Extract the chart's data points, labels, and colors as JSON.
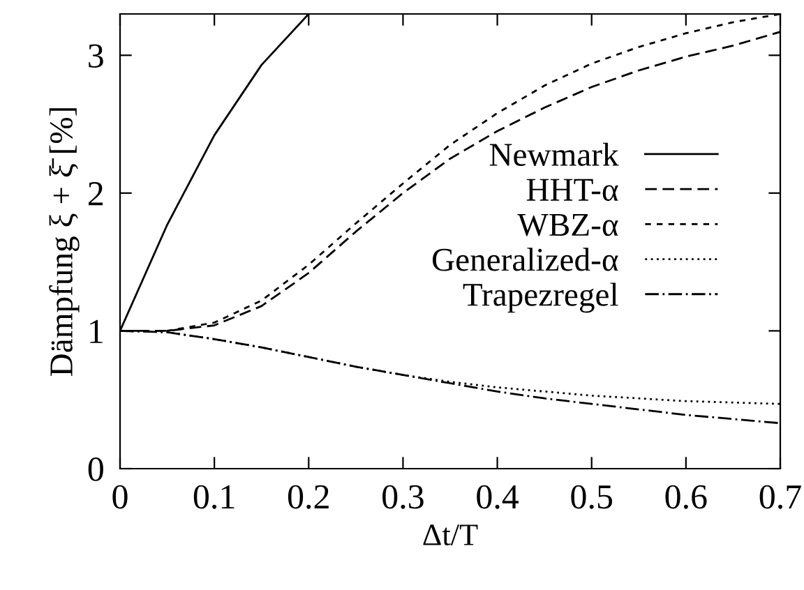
{
  "chart_data": {
    "type": "line",
    "xlabel": "Δt/T",
    "ylabel": "Dämpfung ξ + ξ̄ [%]",
    "x": [
      0,
      0.05,
      0.1,
      0.15,
      0.2,
      0.25,
      0.3,
      0.35,
      0.4,
      0.45,
      0.5,
      0.55,
      0.6,
      0.65,
      0.7
    ],
    "series": [
      {
        "name": "Newmark",
        "color": "#000000",
        "line_style": "solid",
        "x": [
          0,
          0.05,
          0.1,
          0.15,
          0.2
        ],
        "values": [
          1,
          1.77,
          2.42,
          2.93,
          3.3
        ]
      },
      {
        "name": "HHT-α",
        "color": "#000000",
        "line_style": "dashed",
        "values": [
          1,
          1,
          1.04,
          1.18,
          1.42,
          1.72,
          2.0,
          2.25,
          2.45,
          2.62,
          2.77,
          2.89,
          2.99,
          3.07,
          3.17
        ]
      },
      {
        "name": "WBZ-α",
        "color": "#000000",
        "line_style": "short dashed",
        "values": [
          1,
          1,
          1.06,
          1.22,
          1.48,
          1.78,
          2.07,
          2.35,
          2.58,
          2.78,
          2.94,
          3.06,
          3.16,
          3.24,
          3.3
        ]
      },
      {
        "name": "Generalized-α",
        "color": "#000000",
        "line_style": "dotted",
        "values": [
          1,
          0.99,
          0.94,
          0.88,
          0.81,
          0.74,
          0.68,
          0.63,
          0.59,
          0.56,
          0.53,
          0.51,
          0.49,
          0.48,
          0.47
        ]
      },
      {
        "name": "Trapezregel",
        "color": "#000000",
        "line_style": "dashdot",
        "values": [
          1,
          0.99,
          0.94,
          0.88,
          0.81,
          0.74,
          0.68,
          0.62,
          0.56,
          0.51,
          0.47,
          0.43,
          0.39,
          0.36,
          0.33
        ]
      }
    ],
    "xlim": [
      0,
      0.7
    ],
    "xticks": [
      0,
      0.1,
      0.2,
      0.3,
      0.4,
      0.5,
      0.6,
      0.7
    ],
    "ylim": [
      0,
      3.3
    ],
    "yticks": [
      0,
      1,
      2,
      3
    ],
    "grid": false,
    "legend": "right",
    "marker": "none"
  }
}
